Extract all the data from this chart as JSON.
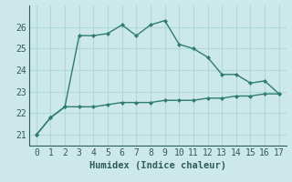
{
  "xlabel": "Humidex (Indice chaleur)",
  "x": [
    0,
    1,
    2,
    3,
    4,
    5,
    6,
    7,
    8,
    9,
    10,
    11,
    12,
    13,
    14,
    15,
    16,
    17
  ],
  "line1_y": [
    21.0,
    21.8,
    22.3,
    25.6,
    25.6,
    25.7,
    26.1,
    25.6,
    26.1,
    26.3,
    25.2,
    25.0,
    24.6,
    23.8,
    23.8,
    23.4,
    23.5,
    22.9
  ],
  "line2_y": [
    21.0,
    21.8,
    22.3,
    22.3,
    22.3,
    22.4,
    22.5,
    22.5,
    22.5,
    22.6,
    22.6,
    22.6,
    22.7,
    22.7,
    22.8,
    22.8,
    22.9,
    22.9
  ],
  "line_color": "#2e7d6e",
  "bg_color": "#cce8e8",
  "grid_color": "#b0d8d8",
  "ylim": [
    20.5,
    27.0
  ],
  "yticks": [
    21,
    22,
    23,
    24,
    25,
    26
  ],
  "xlim": [
    -0.5,
    17.5
  ],
  "xticks": [
    0,
    1,
    2,
    3,
    4,
    5,
    6,
    7,
    8,
    9,
    10,
    11,
    12,
    13,
    14,
    15,
    16,
    17
  ],
  "tick_labelsize": 7,
  "xlabel_fontsize": 7.5
}
